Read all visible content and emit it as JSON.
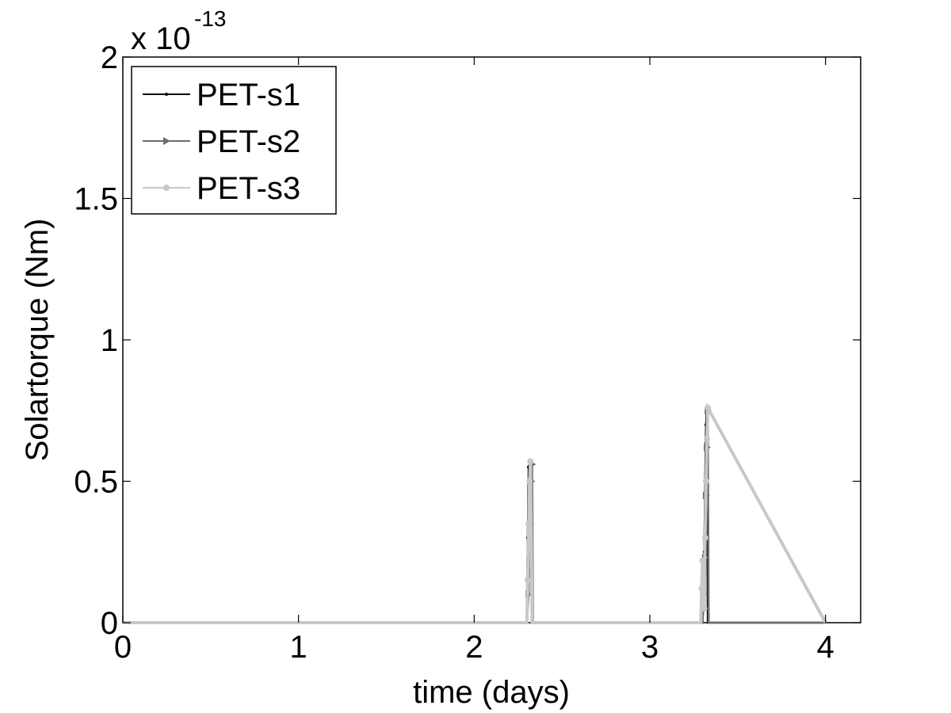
{
  "chart_data": {
    "type": "line",
    "title": "",
    "xlabel": "time (days)",
    "ylabel": "Solartorque (Nm)",
    "xlim": [
      0,
      4.2
    ],
    "ylim": [
      0,
      2
    ],
    "x_ticks": [
      0,
      1,
      2,
      3,
      4
    ],
    "y_ticks": [
      0,
      0.5,
      1,
      1.5,
      2
    ],
    "x_tick_labels": [
      "0",
      "1",
      "2",
      "3",
      "4"
    ],
    "y_tick_labels": [
      "0",
      "0.5",
      "1",
      "1.5",
      "2"
    ],
    "y_exponent": {
      "base": "x 10",
      "exp": "-13"
    },
    "grid": false,
    "legend_position": "top-left",
    "series": [
      {
        "name": "PET-s1",
        "color": "#000000",
        "marker": "dot",
        "x": [
          0,
          2.3,
          2.305,
          2.31,
          2.32,
          2.325,
          2.33,
          3.3,
          3.305,
          3.31,
          3.315,
          3.32,
          3.325,
          3.33,
          4.0
        ],
        "y": [
          0,
          0,
          0.3,
          0.55,
          0.57,
          0.56,
          0,
          0,
          0.1,
          0.25,
          0.5,
          0.7,
          0.76,
          0,
          0
        ]
      },
      {
        "name": "PET-s2",
        "color": "#6e6e6e",
        "marker": "triangle",
        "x": [
          0,
          2.3,
          2.31,
          2.315,
          2.32,
          2.325,
          2.33,
          2.335,
          3.3,
          3.31,
          3.315,
          3.32,
          3.325,
          3.33,
          3.335,
          4.0
        ],
        "y": [
          0,
          0,
          0.1,
          0.22,
          0.35,
          0.5,
          0.56,
          0,
          0,
          0.1,
          0.23,
          0.45,
          0.62,
          0.75,
          0,
          0
        ]
      },
      {
        "name": "PET-s3",
        "color": "#c8c8c8",
        "marker": "circle",
        "x": [
          0,
          2.3,
          2.305,
          2.31,
          2.315,
          2.32,
          2.33,
          3.29,
          3.295,
          3.3,
          3.31,
          3.315,
          3.32,
          3.325,
          3.33,
          4.0
        ],
        "y": [
          0,
          0,
          0.15,
          0.35,
          0.5,
          0.57,
          0,
          0,
          0.12,
          0.22,
          0.05,
          0.3,
          0.5,
          0.65,
          0.76,
          0
        ]
      }
    ]
  }
}
